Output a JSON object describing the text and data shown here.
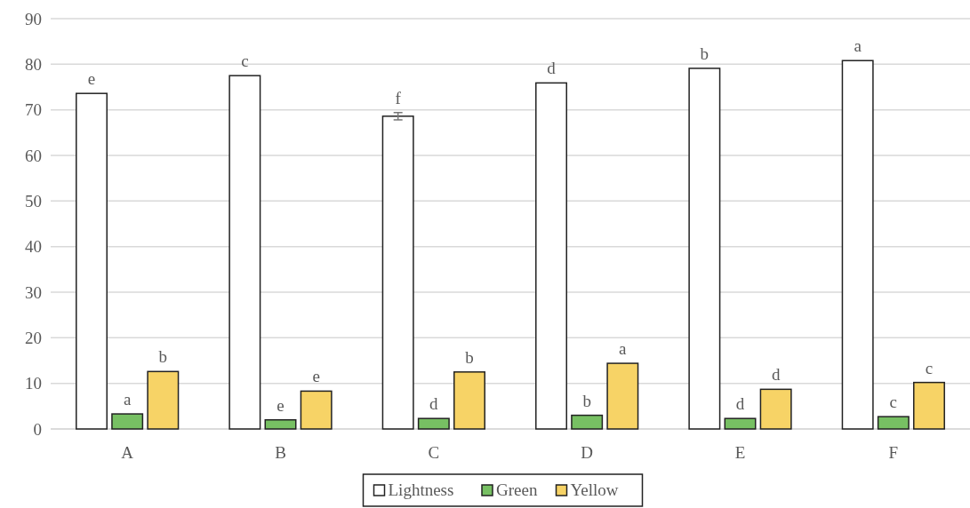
{
  "chart_data": {
    "type": "bar",
    "categories": [
      "A",
      "B",
      "C",
      "D",
      "E",
      "F"
    ],
    "series": [
      {
        "name": "Lightness",
        "color": "#ffffff",
        "values": [
          73.6,
          77.5,
          68.6,
          75.9,
          79.1,
          80.8
        ],
        "errors": [
          null,
          null,
          0.8,
          null,
          null,
          null
        ],
        "value_labels": [
          "e",
          "c",
          "f",
          "d",
          "b",
          "a"
        ]
      },
      {
        "name": "Green",
        "color": "#77c063",
        "values": [
          3.3,
          2.0,
          2.3,
          3.0,
          2.3,
          2.7
        ],
        "value_labels": [
          "a",
          "e",
          "d",
          "b",
          "d",
          "c"
        ]
      },
      {
        "name": "Yellow",
        "color": "#f7d366",
        "values": [
          12.6,
          8.3,
          12.5,
          14.4,
          8.7,
          10.2
        ],
        "value_labels": [
          "b",
          "e",
          "b",
          "a",
          "d",
          "c"
        ]
      }
    ],
    "ylim": [
      0,
      90
    ],
    "yticks": [
      0,
      10,
      20,
      30,
      40,
      50,
      60,
      70,
      80,
      90
    ],
    "grid": "y",
    "legend": "bottom"
  }
}
